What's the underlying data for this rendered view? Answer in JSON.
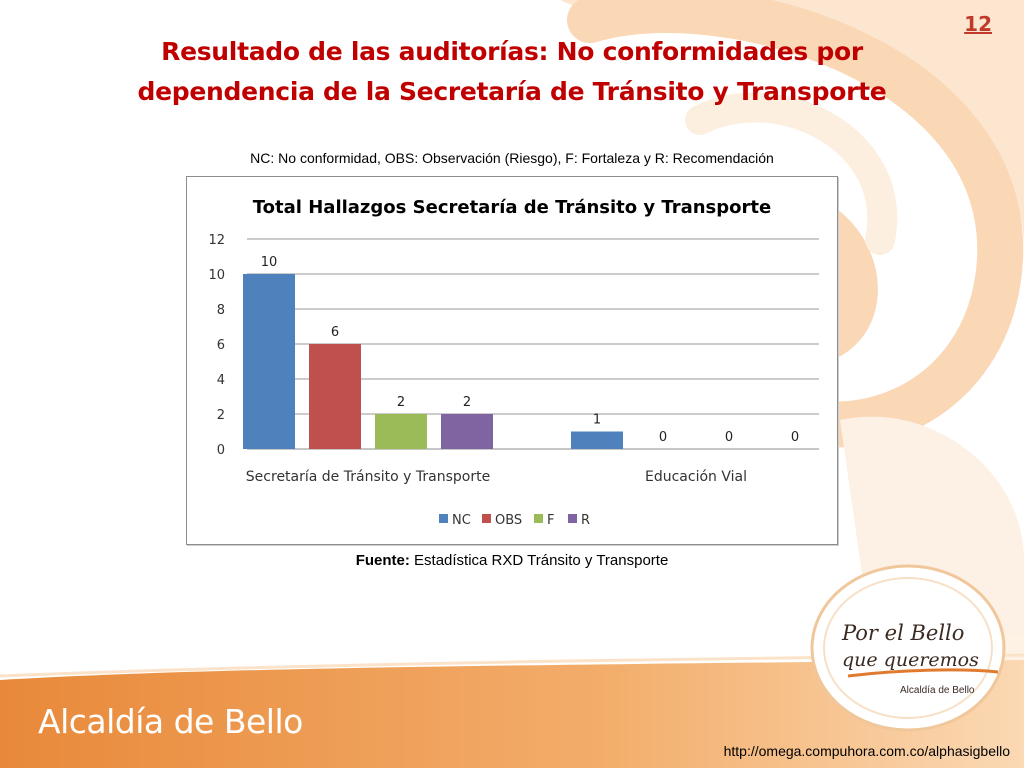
{
  "slide": {
    "number": "12",
    "title_line1": "Resultado de las auditorías: No conformidades por",
    "title_line2": "dependencia de la Secretaría de Tránsito y Transporte",
    "legend_note": "NC: No conformidad, OBS: Observación (Riesgo), F: Fortaleza y R: Recomendación",
    "source_label": "Fuente:",
    "source_text": " Estadística RXD Tránsito y Transporte",
    "footer_brand": "Alcaldía de Bello",
    "footer_url": "http://omega.compuhora.com.co/alphasigbello",
    "logo_line1": "Por el Bello",
    "logo_line2": "que queremos",
    "logo_line3": "Alcaldía de Bello"
  },
  "colors": {
    "title": "#c00000",
    "NC": "#4f81bd",
    "OBS": "#c0504d",
    "F": "#9bbb59",
    "R": "#8064a2",
    "background_orange": "#f6b26b"
  },
  "chart_data": {
    "type": "bar",
    "title": "Total Hallazgos Secretaría de Tránsito y Transporte",
    "categories": [
      "Secretaría de Tránsito y Transporte",
      "Educación Vial"
    ],
    "series": [
      {
        "name": "NC",
        "values": [
          10,
          1
        ]
      },
      {
        "name": "OBS",
        "values": [
          6,
          0
        ]
      },
      {
        "name": "F",
        "values": [
          2,
          0
        ]
      },
      {
        "name": "R",
        "values": [
          2,
          0
        ]
      }
    ],
    "ylim": [
      0,
      12
    ],
    "yticks": [
      0,
      2,
      4,
      6,
      8,
      10,
      12
    ],
    "grid": true,
    "legend_position": "bottom",
    "data_labels": true
  }
}
